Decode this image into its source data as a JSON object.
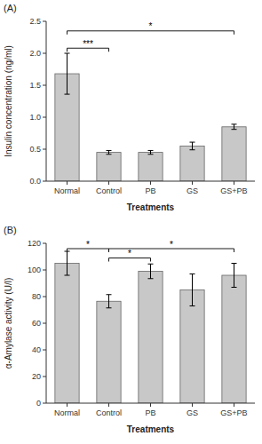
{
  "chart_data": [
    {
      "type": "bar",
      "title": "(A)",
      "categories": [
        "Normal",
        "Control",
        "PB",
        "GS",
        "GS+PB"
      ],
      "values": [
        1.68,
        0.45,
        0.45,
        0.55,
        0.85
      ],
      "errors": [
        0.32,
        0.03,
        0.03,
        0.06,
        0.04
      ],
      "ylabel": "Insulin concentration (ng/ml)",
      "xlabel": "Treatments",
      "ylim": [
        0,
        2.5
      ],
      "yticks": [
        {
          "value": 0.0,
          "label": "0.0"
        },
        0.5,
        {
          "value": 1.0,
          "label": "1.0"
        },
        1.5,
        {
          "value": 2.0,
          "label": "2.0"
        },
        2.5
      ],
      "color": "#c8c8c8",
      "grid": false,
      "annotations": [
        {
          "text": "***",
          "from": "Normal",
          "to": "Control",
          "y": 2.08
        },
        {
          "text": "*",
          "from": "Normal",
          "to": "GS+PB",
          "y": 2.35
        }
      ]
    },
    {
      "type": "bar",
      "title": "(B)",
      "categories": [
        "Normal",
        "Control",
        "PB",
        "GS",
        "GS+PB"
      ],
      "values": [
        105.0,
        76.5,
        99.0,
        85.0,
        96.0
      ],
      "errors": [
        9.0,
        5.0,
        5.5,
        12.0,
        9.0
      ],
      "ylabel": "α-Amylase activity (U/l)",
      "xlabel": "Treatments",
      "ylim": [
        0,
        120
      ],
      "yticks": [
        0,
        20,
        40,
        60,
        80,
        100,
        120
      ],
      "color": "#c8c8c8",
      "grid": false,
      "annotations": [
        {
          "text": "*",
          "from": "Normal",
          "to": "Control",
          "y": 116
        },
        {
          "text": "*",
          "from": "Control",
          "to": "PB",
          "y": 109
        },
        {
          "text": "*",
          "from": "Control",
          "to": "GS+PB",
          "y": 116
        }
      ]
    }
  ]
}
